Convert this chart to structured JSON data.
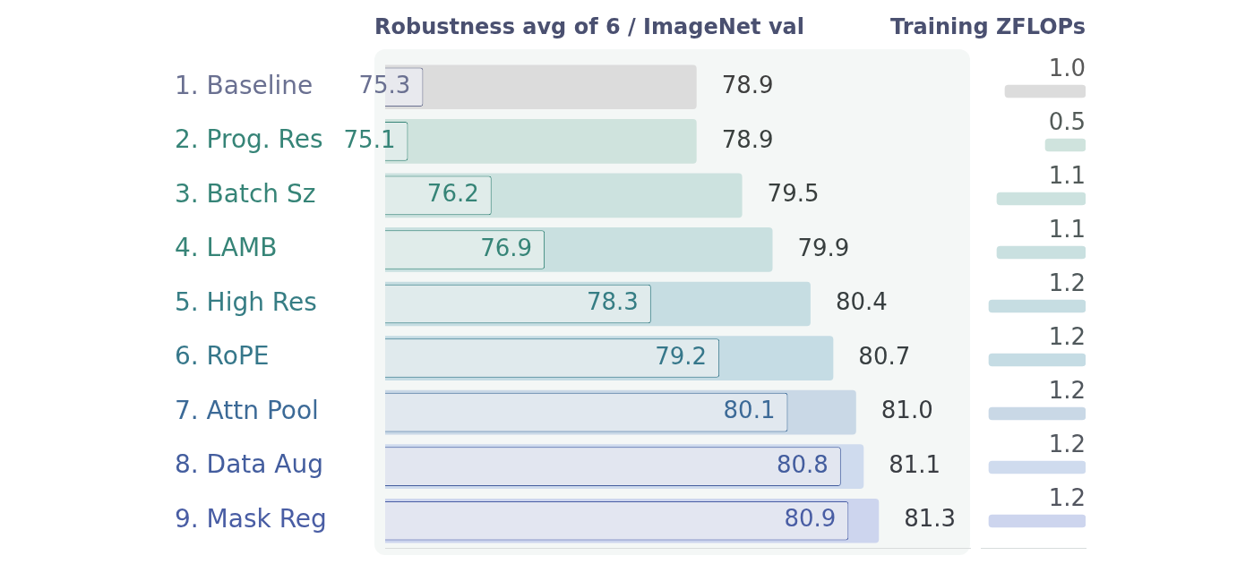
{
  "chart_data": [
    {
      "type": "bar",
      "orientation": "horizontal",
      "title": "Robustness avg of 6 / ImageNet val",
      "categories": [
        "1. Baseline",
        "2. Prog. Res",
        "3. Batch Sz",
        "4. LAMB",
        "5. High Res",
        "6. RoPE",
        "7. Attn Pool",
        "8. Data Aug",
        "9. Mask Reg"
      ],
      "series": [
        {
          "colors": [
            "#e8e9ee",
            "#e0ecea",
            "#e0ecea",
            "#e0ecea",
            "#e0ebec",
            "#e0eaed",
            "#e1e8ef",
            "#e2e6f0",
            "#e3e6f1"
          ],
          "values": [
            75.3,
            75.1,
            76.2,
            76.9,
            78.3,
            79.2,
            80.1,
            80.8,
            80.9
          ],
          "value_labels": [
            "75.3",
            "75.1",
            "76.2",
            "76.9",
            "78.3",
            "79.2",
            "80.1",
            "80.8",
            "80.9"
          ]
        },
        {
          "colors": [
            "#dcdcdc",
            "#cfe3dd",
            "#cce2df",
            "#c9e0e0",
            "#c6dde2",
            "#c5dce4",
            "#c9d8e6",
            "#cfdbee",
            "#cdd5ee"
          ],
          "values": [
            78.9,
            78.9,
            79.5,
            79.9,
            80.4,
            80.7,
            81.0,
            81.1,
            81.3
          ],
          "value_labels": [
            "78.9",
            "78.9",
            "79.5",
            "79.9",
            "80.4",
            "80.7",
            "81.0",
            "81.1",
            "81.3"
          ]
        }
      ],
      "xlim": [
        74.8,
        82.5
      ],
      "tick_labels": "y"
    },
    {
      "type": "bar",
      "orientation": "horizontal",
      "title": "Training ZFLOPs",
      "categories": [
        null,
        null,
        null,
        null,
        null,
        null,
        null,
        null,
        null
      ],
      "colors": [
        "#dcdcdc",
        "#cfe3dd",
        "#cce2df",
        "#c9e0e0",
        "#c6dde2",
        "#c5dce4",
        "#c9d8e6",
        "#cfdbee",
        "#cdd5ee"
      ],
      "values": [
        1.0,
        0.5,
        1.1,
        1.1,
        1.2,
        1.2,
        1.2,
        1.2,
        1.2
      ],
      "value_labels": [
        "1.0",
        "0.5",
        "1.1",
        "1.1",
        "1.2",
        "1.2",
        "1.2",
        "1.2",
        "1.2"
      ],
      "xlim": [
        1.3,
        0
      ],
      "tick_labels": false
    }
  ]
}
